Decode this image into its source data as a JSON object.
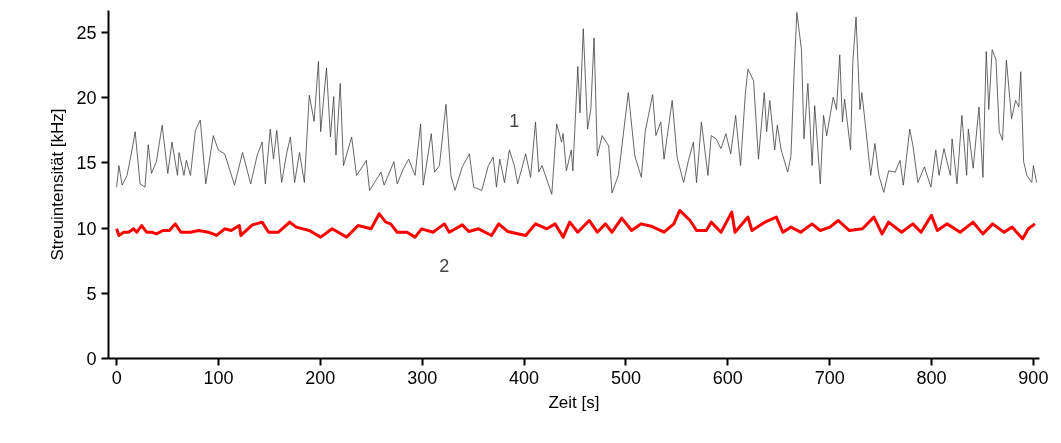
{
  "chart_data": {
    "type": "line",
    "xlabel": "Zeit [s]",
    "ylabel": "Streuintensität [kHz]",
    "xlim": [
      -8,
      906
    ],
    "ylim": [
      0,
      26.7
    ],
    "xticks": [
      0,
      100,
      200,
      300,
      400,
      500,
      600,
      700,
      800,
      900
    ],
    "yticks": [
      0,
      5,
      10,
      15,
      20,
      25
    ],
    "grid": false,
    "marker": "none",
    "series": [
      {
        "name": "1",
        "color": "#404040",
        "x": [
          0,
          2.2,
          5.4,
          10.2,
          13.4,
          18.2,
          23,
          27.8,
          31,
          34.2,
          39,
          44.7,
          50.2,
          54.3,
          59.7,
          61.3,
          66.1,
          68.4,
          72.5,
          77.3,
          82.1,
          87.5,
          94.9,
          99.7,
          106.1,
          115.7,
          123.6,
          131.6,
          138,
          142.8,
          146,
          150.8,
          154,
          157.2,
          162,
          166.8,
          170.6,
          174.7,
          179.5,
          184.3,
          189.1,
          193.9,
          198.1,
          200.3,
          206,
          209.9,
          213.1,
          215.3,
          219.5,
          222.7,
          230.7,
          235.5,
          240.3,
          245.1,
          248.3,
          253.1,
          259.5,
          262.6,
          272.2,
          275.4,
          281.8,
          286.6,
          293,
          298.4,
          301,
          308.9,
          312.1,
          316.9,
          323.3,
          328.1,
          332.2,
          339.3,
          346.3,
          350.5,
          358.5,
          364.9,
          369.7,
          372.9,
          376.1,
          380.8,
          385.6,
          390.4,
          393.7,
          401.6,
          406.4,
          411.2,
          414.4,
          417.6,
          427.2,
          432,
          436.8,
          438.3,
          441.5,
          446.3,
          447.9,
          452.7,
          454.9,
          458.1,
          462.3,
          465.5,
          468.7,
          471.9,
          476.7,
          483.1,
          486.3,
          492.7,
          502.3,
          508.7,
          515.1,
          518.9,
          526.2,
          529.4,
          534.2,
          537.4,
          545.4,
          550.2,
          556.6,
          561.4,
          566.2,
          569.3,
          574.1,
          580.5,
          583.7,
          588.5,
          593.3,
          598.1,
          602.9,
          607.7,
          612.5,
          617.3,
          619.8,
          625.3,
          630.1,
          635.8,
          638.1,
          641.2,
          646,
          648.6,
          652.4,
          658.8,
          662,
          665.2,
          667.8,
          672.3,
          674.8,
          678.6,
          682.8,
          685.3,
          690.8,
          694,
          697.1,
          703.5,
          706.7,
          709.9,
          712.5,
          714.7,
          720.5,
          722.7,
          725.9,
          729.7,
          731.6,
          735.5,
          740.3,
          744.4,
          748.3,
          753.1,
          757.9,
          764.3,
          769.1,
          772.3,
          778.6,
          781.8,
          786.6,
          793,
          799.4,
          804.2,
          807.4,
          812.2,
          818.5,
          820.2,
          825,
          829.8,
          834.5,
          836.1,
          840.9,
          846.6,
          850.5,
          853.7,
          856.2,
          859.5,
          863.3,
          866.5,
          869.7,
          873.5,
          878.6,
          882.5,
          885.7,
          887.6,
          890.4,
          893.6,
          898.4,
          900,
          903.2
        ],
        "values": [
          13.15,
          14.8,
          13.3,
          14.05,
          15.3,
          17.4,
          13.4,
          13.15,
          16.4,
          14.2,
          15.1,
          17.9,
          14.2,
          16.6,
          14.05,
          15.8,
          14.05,
          15.2,
          14.05,
          17.5,
          18.3,
          13.4,
          17.1,
          16,
          15.7,
          13.3,
          15.8,
          13.4,
          15.6,
          16.6,
          13.4,
          17.6,
          15.3,
          17.5,
          13.5,
          15.7,
          17,
          13.5,
          15.8,
          13.5,
          20.2,
          18.2,
          22.8,
          17.4,
          22.3,
          17,
          20.1,
          15.6,
          21.1,
          14.8,
          17,
          14.05,
          14.6,
          15.2,
          12.9,
          13.5,
          14.3,
          13.3,
          15.1,
          13.4,
          14.6,
          15.3,
          14.05,
          18,
          13.3,
          17.25,
          14.3,
          14.8,
          19.5,
          14.05,
          12.9,
          14.7,
          15.7,
          13.15,
          12.9,
          14.8,
          15.45,
          13.15,
          15.3,
          13.5,
          16,
          14.8,
          13.4,
          15.7,
          13.9,
          18.15,
          14.3,
          14.8,
          12.6,
          18,
          16.6,
          17.25,
          14.4,
          16,
          14.4,
          22.4,
          18.85,
          25.3,
          17.6,
          19.1,
          24.6,
          15.55,
          17.1,
          16.3,
          12.7,
          14.1,
          20.4,
          15.55,
          13.9,
          17.4,
          20.25,
          17.1,
          18.15,
          15.3,
          19.8,
          15.45,
          13.5,
          15.2,
          16.6,
          13.5,
          18.15,
          14.05,
          17.1,
          16.85,
          16.1,
          17.25,
          15.7,
          18.65,
          14.8,
          20.4,
          22.2,
          21.3,
          15.3,
          20.4,
          17.4,
          19.8,
          16,
          17.9,
          16,
          14.3,
          15.55,
          22.2,
          26.55,
          23.7,
          16.85,
          21.1,
          14.8,
          19.4,
          13.4,
          18.65,
          17.1,
          20.05,
          19.1,
          23.3,
          18.15,
          19.9,
          16,
          22.7,
          26.2,
          19.1,
          20.4,
          17.6,
          14.05,
          16.5,
          14.05,
          12.75,
          14.4,
          14.3,
          15.2,
          13.3,
          17.6,
          16.3,
          13.5,
          14.7,
          13.15,
          16,
          14.05,
          16.1,
          14.05,
          16.85,
          13.4,
          18.65,
          14.05,
          17.6,
          14.6,
          19.3,
          13.9,
          23.55,
          19.1,
          23.7,
          22.9,
          17.4,
          16.75,
          22.9,
          18.4,
          19.8,
          19.3,
          22,
          15.1,
          14.05,
          13.5,
          14.8,
          13.5
        ]
      },
      {
        "name": "2",
        "color": "#ff0000",
        "x": [
          0,
          2.2,
          7,
          11.8,
          16.6,
          19.8,
          24.6,
          29.4,
          34.2,
          39,
          45.4,
          51.8,
          57.5,
          63,
          72.5,
          80.5,
          90.1,
          98.1,
          106.1,
          112.5,
          120.4,
          122,
          133.2,
          142.8,
          149.2,
          158.8,
          169.9,
          176.3,
          189.1,
          200.3,
          211.5,
          225.8,
          237,
          249.8,
          257.8,
          264.2,
          269,
          275.4,
          285,
          293,
          299.4,
          310.6,
          321.7,
          326.5,
          339.3,
          345.7,
          355.3,
          368,
          375.1,
          384,
          401.6,
          411.2,
          422.4,
          430.4,
          438.4,
          444.8,
          452.7,
          463.9,
          471.9,
          479.9,
          486.3,
          495.9,
          505.5,
          515.1,
          524.7,
          537.4,
          547,
          552.8,
          563,
          569.3,
          578.9,
          583.7,
          593.3,
          603.9,
          607.1,
          619.8,
          623.7,
          636.4,
          647.6,
          654,
          661.9,
          671.5,
          682.7,
          690.7,
          700.3,
          708.3,
          719.4,
          732.2,
          743.4,
          751.4,
          757.8,
          770.6,
          781.7,
          789.7,
          799.9,
          805.7,
          815.3,
          828.1,
          840.8,
          850.4,
          860,
          871.2,
          879.1,
          889.4,
          895.1,
          901.5
        ],
        "values": [
          9.95,
          9.44,
          9.69,
          9.69,
          9.95,
          9.69,
          10.2,
          9.69,
          9.69,
          9.56,
          9.82,
          9.82,
          10.33,
          9.69,
          9.69,
          9.82,
          9.69,
          9.44,
          9.95,
          9.82,
          10.2,
          9.44,
          10.25,
          10.46,
          9.69,
          9.69,
          10.46,
          10.08,
          9.82,
          9.31,
          9.95,
          9.31,
          10.2,
          9.95,
          11.1,
          10.46,
          10.33,
          9.69,
          9.69,
          9.31,
          9.95,
          9.69,
          10.33,
          9.69,
          10.25,
          9.74,
          9.95,
          9.44,
          10.33,
          9.74,
          9.44,
          10.33,
          9.95,
          10.33,
          9.31,
          10.46,
          9.69,
          10.59,
          9.69,
          10.33,
          9.69,
          10.77,
          9.82,
          10.33,
          10.15,
          9.69,
          10.33,
          11.36,
          10.59,
          9.82,
          9.82,
          10.46,
          9.69,
          11.23,
          9.69,
          10.85,
          9.82,
          10.46,
          10.85,
          9.69,
          10.08,
          9.69,
          10.33,
          9.82,
          10.08,
          10.59,
          9.82,
          9.95,
          10.85,
          9.56,
          10.46,
          9.69,
          10.33,
          9.69,
          10.98,
          9.82,
          10.33,
          9.69,
          10.46,
          9.56,
          10.33,
          9.69,
          10.08,
          9.18,
          9.95,
          10.33
        ]
      }
    ]
  }
}
